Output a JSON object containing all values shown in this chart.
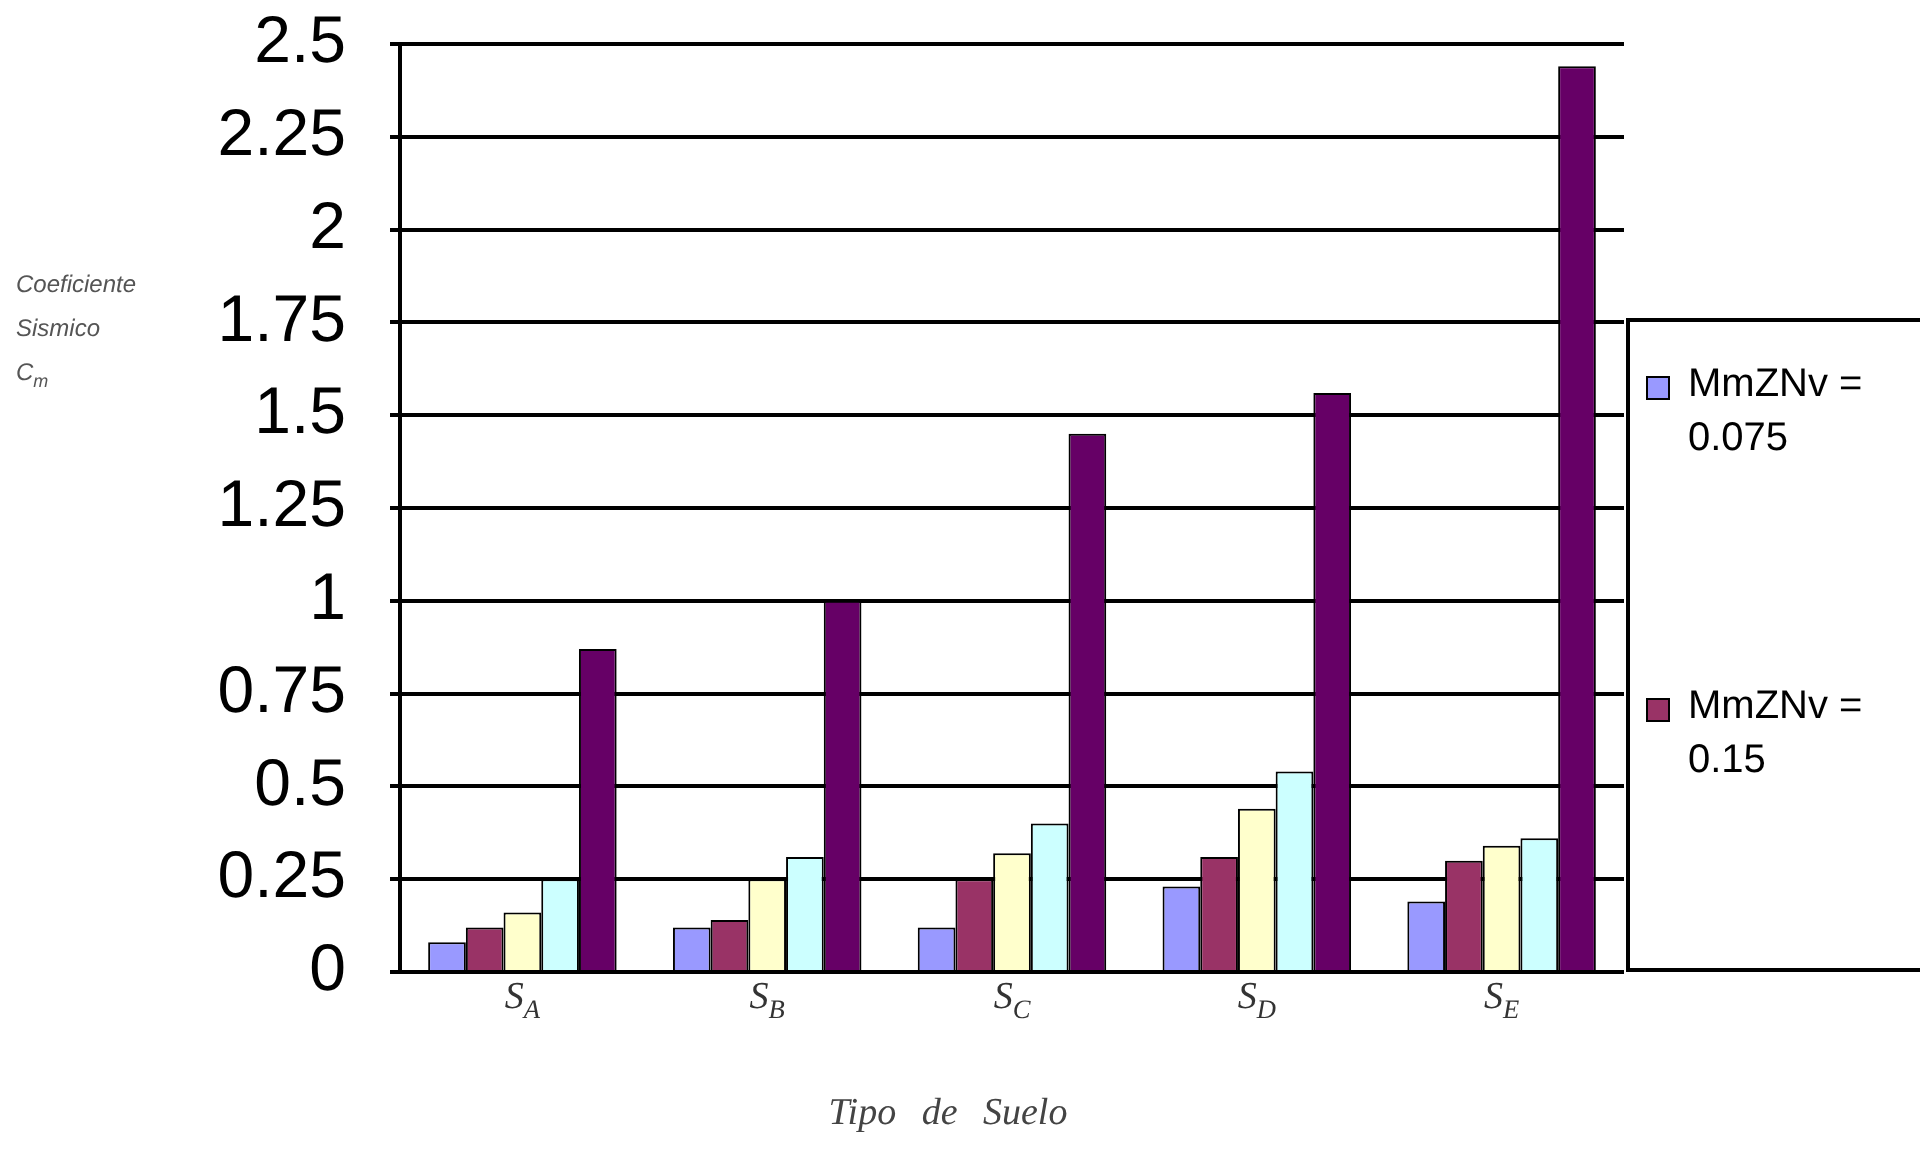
{
  "chart_data": {
    "type": "bar",
    "xlabel": "Tipo de Suelo",
    "ylabel": "Coeficiente Sismico C$_{m}$",
    "categories": [
      "S$_{A}$",
      "S$_{B}$",
      "S$_{C}$",
      "S$_{D}$",
      "S$_{E}$"
    ],
    "series": [
      {
        "name": "MmZNv = 0.075",
        "color": "#9999ff",
        "values": [
          0.08,
          0.12,
          0.12,
          0.23,
          0.19
        ]
      },
      {
        "name": "MmZNv = 0.15",
        "color": "#993366",
        "values": [
          0.12,
          0.14,
          0.25,
          0.31,
          0.3
        ]
      },
      {
        "color": "#ffffcc",
        "values": [
          0.16,
          0.25,
          0.32,
          0.44,
          0.34
        ]
      },
      {
        "color": "#ccffff",
        "values": [
          0.25,
          0.31,
          0.4,
          0.54,
          0.36
        ]
      },
      {
        "color": "#660066",
        "values": [
          0.87,
          1.0,
          1.45,
          1.56,
          2.44
        ]
      }
    ],
    "ylim": [
      0,
      2.5
    ],
    "yticks": [
      0,
      0.25,
      0.5,
      0.75,
      1,
      1.25,
      1.5,
      1.75,
      2,
      2.25,
      2.5
    ],
    "grid": "y",
    "legend": "right"
  }
}
